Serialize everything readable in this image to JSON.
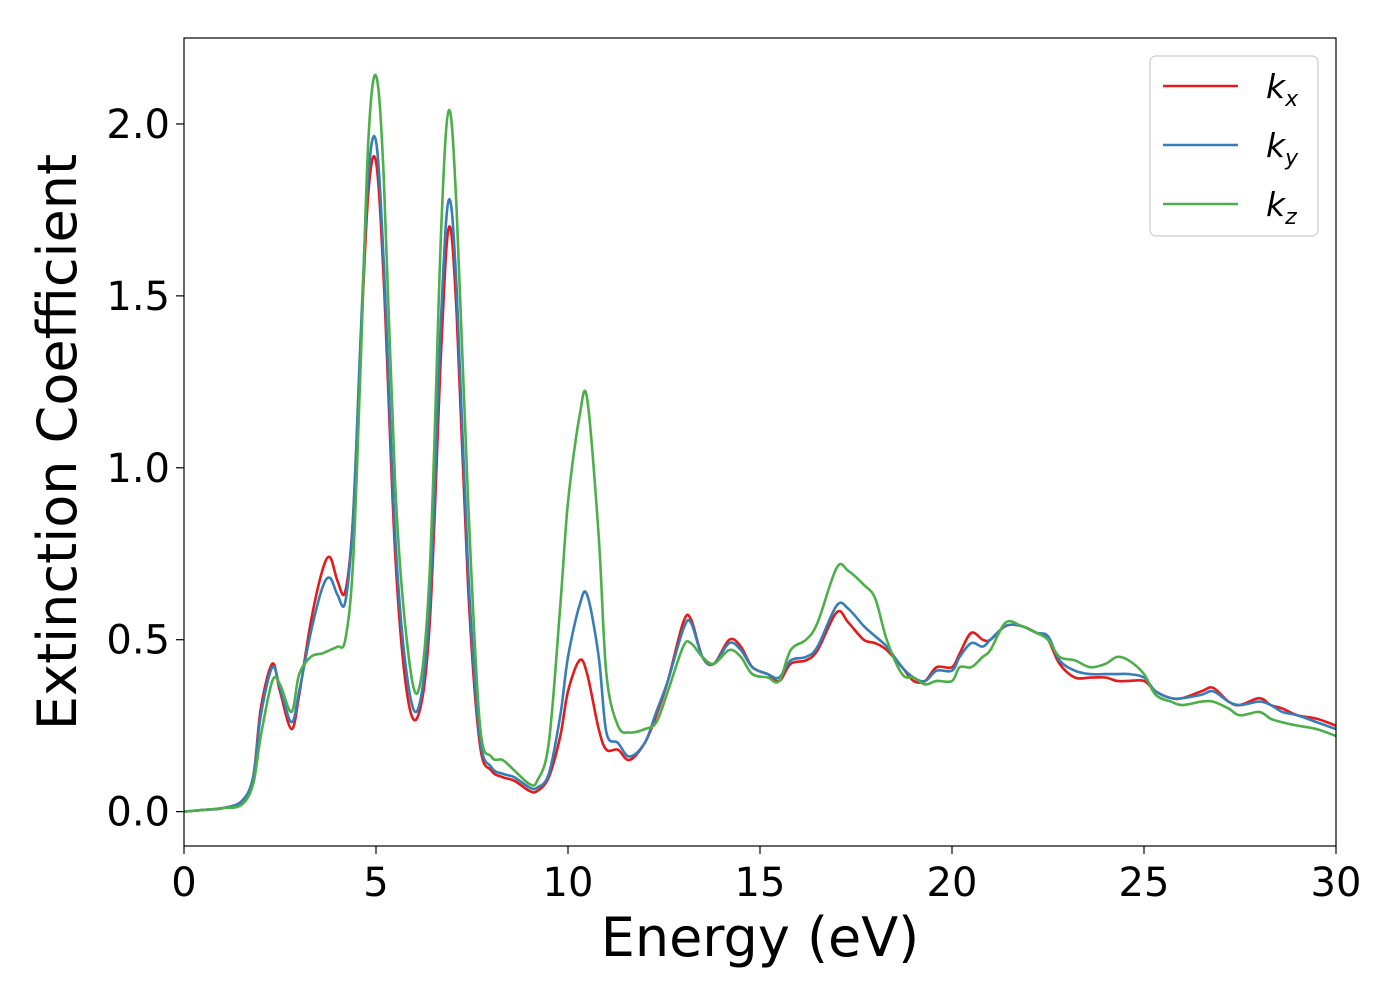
{
  "chart_data": {
    "type": "line",
    "xlabel": "Energy (eV)",
    "ylabel": "Extinction Coefficient",
    "xlim": [
      0,
      30
    ],
    "ylim": [
      -0.1,
      2.25
    ],
    "xticks": [
      0,
      5,
      10,
      15,
      20,
      25,
      30
    ],
    "xtick_labels": [
      "0",
      "5",
      "10",
      "15",
      "20",
      "25",
      "30"
    ],
    "yticks": [
      0.0,
      0.5,
      1.0,
      1.5,
      2.0
    ],
    "ytick_labels": [
      "0.0",
      "0.5",
      "1.0",
      "1.5",
      "2.0"
    ],
    "grid": false,
    "legend_position": "top-right",
    "x": [
      0,
      0.5,
      1.0,
      1.5,
      1.8,
      2.0,
      2.3,
      2.5,
      2.8,
      3.0,
      3.3,
      3.6,
      3.8,
      4.0,
      4.2,
      4.4,
      4.6,
      4.8,
      5.0,
      5.2,
      5.5,
      5.8,
      6.1,
      6.4,
      6.7,
      6.9,
      7.1,
      7.4,
      7.7,
      8.0,
      8.3,
      8.6,
      9.0,
      9.2,
      9.5,
      9.8,
      10.0,
      10.3,
      10.5,
      10.8,
      11.0,
      11.3,
      11.6,
      12.0,
      12.3,
      12.6,
      13.0,
      13.2,
      13.5,
      13.8,
      14.2,
      14.5,
      14.8,
      15.2,
      15.5,
      15.8,
      16.2,
      16.5,
      17.0,
      17.3,
      17.7,
      18.0,
      18.3,
      18.7,
      19.0,
      19.3,
      19.6,
      20.0,
      20.2,
      20.5,
      20.8,
      21.0,
      21.4,
      21.8,
      22.2,
      22.5,
      22.8,
      23.2,
      23.6,
      24.0,
      24.3,
      24.6,
      25.0,
      25.3,
      25.7,
      26.0,
      26.5,
      26.8,
      27.2,
      27.5,
      28.0,
      28.3,
      28.6,
      29.0,
      29.5,
      30.0
    ],
    "series": [
      {
        "name": "k_x",
        "label_main": "k",
        "label_sub": "x",
        "color": "#e41a1c",
        "values": [
          0.0,
          0.005,
          0.01,
          0.03,
          0.1,
          0.3,
          0.43,
          0.35,
          0.24,
          0.34,
          0.55,
          0.7,
          0.74,
          0.67,
          0.64,
          0.85,
          1.35,
          1.8,
          1.89,
          1.55,
          0.75,
          0.35,
          0.28,
          0.55,
          1.35,
          1.7,
          1.45,
          0.65,
          0.2,
          0.12,
          0.1,
          0.09,
          0.06,
          0.06,
          0.1,
          0.22,
          0.35,
          0.44,
          0.4,
          0.24,
          0.18,
          0.18,
          0.15,
          0.2,
          0.28,
          0.38,
          0.55,
          0.56,
          0.45,
          0.43,
          0.5,
          0.48,
          0.42,
          0.4,
          0.38,
          0.43,
          0.44,
          0.47,
          0.58,
          0.55,
          0.5,
          0.49,
          0.47,
          0.42,
          0.38,
          0.38,
          0.42,
          0.42,
          0.46,
          0.52,
          0.5,
          0.5,
          0.54,
          0.54,
          0.52,
          0.5,
          0.43,
          0.39,
          0.39,
          0.39,
          0.38,
          0.38,
          0.38,
          0.35,
          0.33,
          0.33,
          0.35,
          0.36,
          0.32,
          0.31,
          0.33,
          0.31,
          0.3,
          0.28,
          0.27,
          0.25
        ]
      },
      {
        "name": "k_y",
        "label_main": "k",
        "label_sub": "y",
        "color": "#377eb8",
        "values": [
          0.0,
          0.005,
          0.01,
          0.03,
          0.1,
          0.28,
          0.42,
          0.36,
          0.26,
          0.35,
          0.52,
          0.65,
          0.68,
          0.63,
          0.61,
          0.85,
          1.38,
          1.85,
          1.95,
          1.6,
          0.8,
          0.4,
          0.3,
          0.6,
          1.45,
          1.78,
          1.52,
          0.7,
          0.22,
          0.13,
          0.11,
          0.1,
          0.07,
          0.07,
          0.11,
          0.28,
          0.45,
          0.6,
          0.63,
          0.45,
          0.23,
          0.2,
          0.16,
          0.2,
          0.29,
          0.38,
          0.53,
          0.55,
          0.45,
          0.43,
          0.49,
          0.47,
          0.42,
          0.4,
          0.39,
          0.44,
          0.45,
          0.48,
          0.6,
          0.59,
          0.54,
          0.51,
          0.48,
          0.42,
          0.39,
          0.38,
          0.41,
          0.41,
          0.45,
          0.49,
          0.48,
          0.5,
          0.54,
          0.54,
          0.52,
          0.51,
          0.44,
          0.41,
          0.4,
          0.4,
          0.4,
          0.4,
          0.39,
          0.35,
          0.33,
          0.33,
          0.34,
          0.35,
          0.32,
          0.31,
          0.32,
          0.31,
          0.29,
          0.28,
          0.26,
          0.24
        ]
      },
      {
        "name": "k_z",
        "label_main": "k",
        "label_sub": "z",
        "color": "#4daf4a",
        "values": [
          0.0,
          0.005,
          0.01,
          0.02,
          0.08,
          0.22,
          0.38,
          0.37,
          0.29,
          0.4,
          0.45,
          0.46,
          0.47,
          0.48,
          0.5,
          0.72,
          1.3,
          1.95,
          2.14,
          1.85,
          0.95,
          0.5,
          0.35,
          0.7,
          1.7,
          2.04,
          1.75,
          0.9,
          0.26,
          0.16,
          0.15,
          0.12,
          0.08,
          0.09,
          0.2,
          0.6,
          0.9,
          1.15,
          1.2,
          0.8,
          0.4,
          0.25,
          0.23,
          0.24,
          0.26,
          0.35,
          0.48,
          0.49,
          0.45,
          0.43,
          0.47,
          0.45,
          0.4,
          0.39,
          0.38,
          0.47,
          0.5,
          0.55,
          0.71,
          0.7,
          0.66,
          0.62,
          0.5,
          0.4,
          0.39,
          0.37,
          0.38,
          0.38,
          0.42,
          0.42,
          0.45,
          0.47,
          0.55,
          0.54,
          0.52,
          0.5,
          0.45,
          0.44,
          0.42,
          0.43,
          0.45,
          0.44,
          0.4,
          0.34,
          0.32,
          0.31,
          0.32,
          0.32,
          0.3,
          0.28,
          0.29,
          0.27,
          0.26,
          0.25,
          0.24,
          0.22
        ]
      }
    ]
  }
}
